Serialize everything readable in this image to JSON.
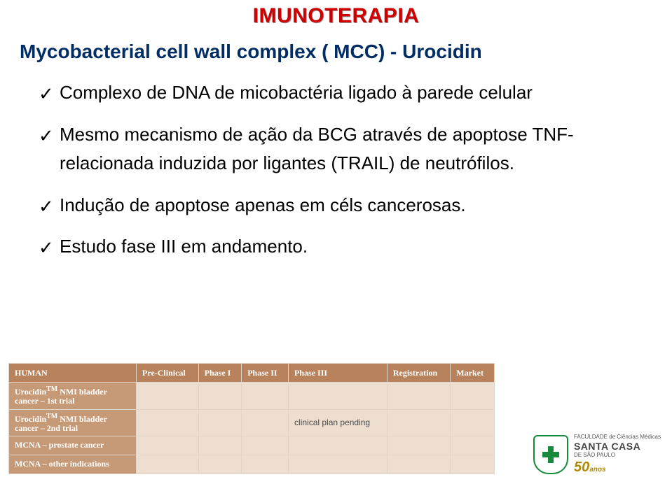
{
  "header": {
    "title": "IMUNOTERAPIA"
  },
  "section": {
    "heading": "Mycobacterial cell wall complex ( MCC) - Urocidin"
  },
  "bullets": [
    "Complexo de DNA de micobactéria ligado à parede celular",
    "Mesmo mecanismo de ação da BCG através de apoptose TNF-relacionada induzida por ligantes (TRAIL) de neutrófilos.",
    "Indução de apoptose apenas em céls cancerosas.",
    "Estudo fase III em andamento."
  ],
  "table": {
    "header_bg": "#b8825c",
    "rowlabel_bg": "#c79a77",
    "cell_bg": "#eeded0",
    "columns": [
      "HUMAN",
      "Pre-Clinical",
      "Phase I",
      "Phase II",
      "Phase III",
      "Registration",
      "Market"
    ],
    "rows": [
      {
        "label": "Urocidin™ NMI bladder cancer – 1st trial",
        "cells": [
          "",
          "",
          "",
          "",
          "",
          ""
        ]
      },
      {
        "label": "Urocidin™ NMI bladder cancer – 2nd trial",
        "cells": [
          "",
          "",
          "",
          "clinical plan pending",
          "",
          ""
        ]
      },
      {
        "label": "MCNA – prostate cancer",
        "cells": [
          "",
          "",
          "",
          "",
          "",
          ""
        ]
      },
      {
        "label": "MCNA – other indications",
        "cells": [
          "",
          "",
          "",
          "",
          "",
          ""
        ]
      }
    ]
  },
  "logo": {
    "line1": "FACULDADE de Ciências Médicas",
    "main": "SANTA CASA",
    "line2": "DE SÃO PAULO",
    "years_num": "50",
    "years_label": "anos"
  }
}
